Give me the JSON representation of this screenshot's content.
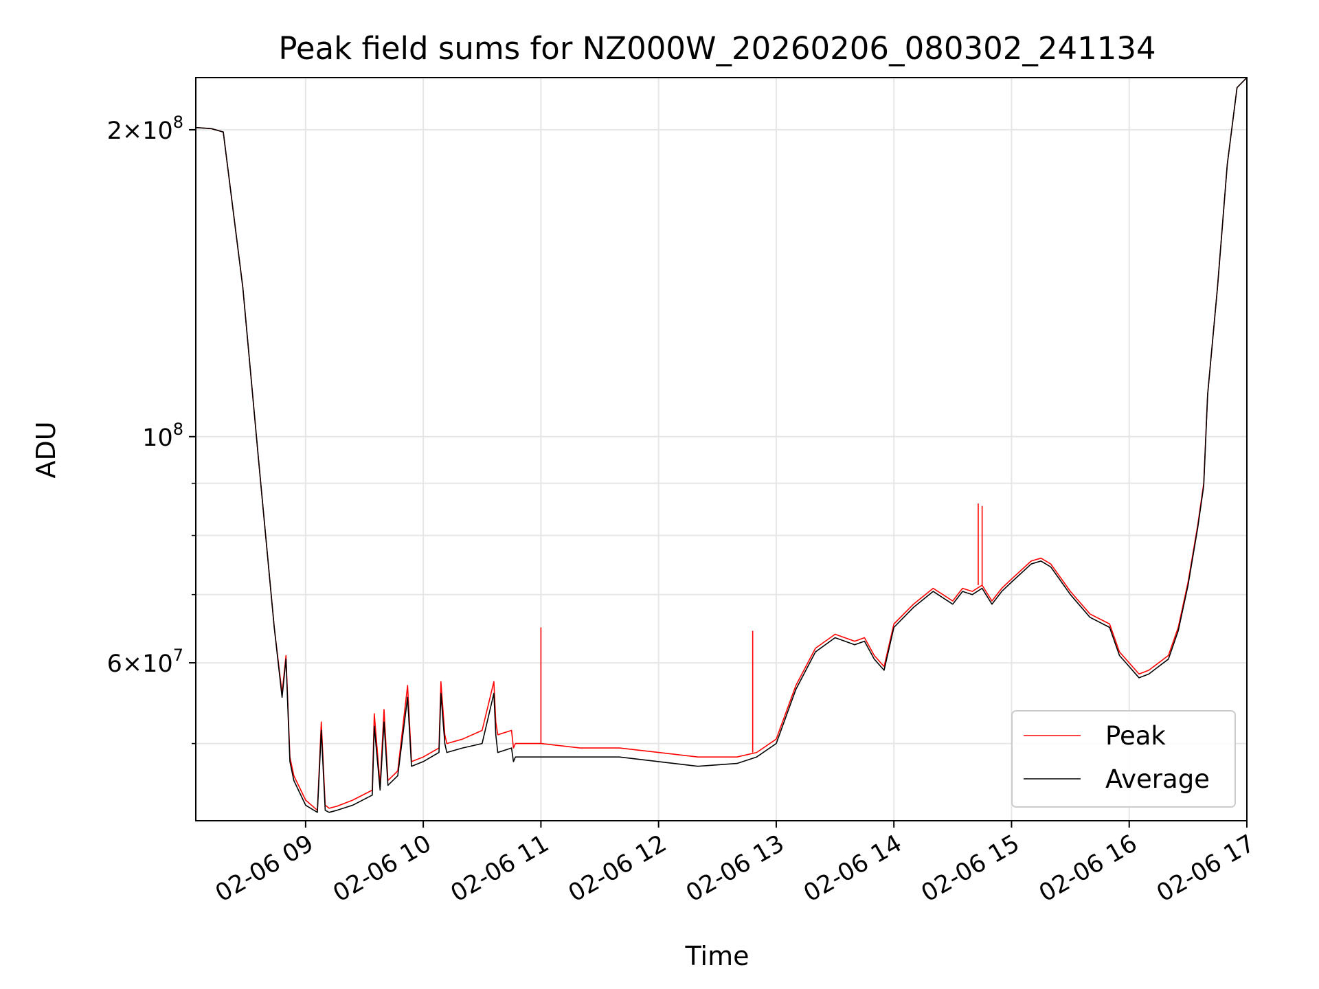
{
  "chart_data": {
    "type": "line",
    "title": "Peak field sums for NZ000W_20260206_080302_241134",
    "xlabel": "Time",
    "ylabel": "ADU",
    "y_scale": "log",
    "ylim": [
      42000000,
      225000000
    ],
    "xlim": [
      "2026-02-06 08:04",
      "2026-02-06 17:00"
    ],
    "grid": true,
    "legend_position": "lower right",
    "x_ticks": [
      {
        "t": "2026-02-06 09:00",
        "label": "02-06 09"
      },
      {
        "t": "2026-02-06 10:00",
        "label": "02-06 10"
      },
      {
        "t": "2026-02-06 11:00",
        "label": "02-06 11"
      },
      {
        "t": "2026-02-06 12:00",
        "label": "02-06 12"
      },
      {
        "t": "2026-02-06 13:00",
        "label": "02-06 13"
      },
      {
        "t": "2026-02-06 14:00",
        "label": "02-06 14"
      },
      {
        "t": "2026-02-06 15:00",
        "label": "02-06 15"
      },
      {
        "t": "2026-02-06 16:00",
        "label": "02-06 16"
      },
      {
        "t": "2026-02-06 17:00",
        "label": "02-06 17"
      }
    ],
    "y_ticks_major": [
      {
        "value": 200000000,
        "label": "2×10^8"
      },
      {
        "value": 100000000,
        "label": "10^8"
      },
      {
        "value": 60000000,
        "label": "6×10^7"
      }
    ],
    "y_ticks_minor": [
      50000000,
      70000000,
      80000000,
      90000000
    ],
    "colors": {
      "peak": "#ff0000",
      "average": "#000000"
    },
    "series": [
      {
        "name": "Peak",
        "x": [
          "2026-02-06 08:04",
          "2026-02-06 08:12",
          "2026-02-06 08:18",
          "2026-02-06 08:28",
          "2026-02-06 08:36",
          "2026-02-06 08:44",
          "2026-02-06 08:48",
          "2026-02-06 08:50",
          "2026-02-06 08:52",
          "2026-02-06 08:54",
          "2026-02-06 09:00",
          "2026-02-06 09:06",
          "2026-02-06 09:08",
          "2026-02-06 09:10",
          "2026-02-06 09:12",
          "2026-02-06 09:16",
          "2026-02-06 09:24",
          "2026-02-06 09:34",
          "2026-02-06 09:35",
          "2026-02-06 09:38",
          "2026-02-06 09:40",
          "2026-02-06 09:42",
          "2026-02-06 09:47",
          "2026-02-06 09:52",
          "2026-02-06 09:54",
          "2026-02-06 10:00",
          "2026-02-06 10:08",
          "2026-02-06 10:09",
          "2026-02-06 10:11",
          "2026-02-06 10:12",
          "2026-02-06 10:20",
          "2026-02-06 10:30",
          "2026-02-06 10:36",
          "2026-02-06 10:37",
          "2026-02-06 10:38",
          "2026-02-06 10:45",
          "2026-02-06 10:46",
          "2026-02-06 10:47",
          "2026-02-06 11:00",
          "2026-02-06 11:20",
          "2026-02-06 11:40",
          "2026-02-06 12:00",
          "2026-02-06 12:20",
          "2026-02-06 12:40",
          "2026-02-06 12:50",
          "2026-02-06 13:00",
          "2026-02-06 13:10",
          "2026-02-06 13:20",
          "2026-02-06 13:30",
          "2026-02-06 13:40",
          "2026-02-06 13:45",
          "2026-02-06 13:50",
          "2026-02-06 13:55",
          "2026-02-06 14:00",
          "2026-02-06 14:10",
          "2026-02-06 14:20",
          "2026-02-06 14:30",
          "2026-02-06 14:35",
          "2026-02-06 14:40",
          "2026-02-06 14:45",
          "2026-02-06 14:50",
          "2026-02-06 14:55",
          "2026-02-06 15:00",
          "2026-02-06 15:10",
          "2026-02-06 15:15",
          "2026-02-06 15:20",
          "2026-02-06 15:30",
          "2026-02-06 15:40",
          "2026-02-06 15:50",
          "2026-02-06 15:55",
          "2026-02-06 16:00",
          "2026-02-06 16:05",
          "2026-02-06 16:10",
          "2026-02-06 16:15",
          "2026-02-06 16:20",
          "2026-02-06 16:25",
          "2026-02-06 16:30",
          "2026-02-06 16:35",
          "2026-02-06 16:38",
          "2026-02-06 16:40",
          "2026-02-06 16:45",
          "2026-02-06 16:50",
          "2026-02-06 16:55",
          "2026-02-06 17:00"
        ],
        "y": [
          201000000,
          200500000,
          199000000,
          140000000,
          95000000,
          65000000,
          56000000,
          61000000,
          48500000,
          46500000,
          44000000,
          43000000,
          52500000,
          43500000,
          43200000,
          43400000,
          44000000,
          45000000,
          53500000,
          45500000,
          54000000,
          46000000,
          47000000,
          57000000,
          48000000,
          48500000,
          49500000,
          57500000,
          51000000,
          50000000,
          50500000,
          51500000,
          57500000,
          52500000,
          51000000,
          51500000,
          49500000,
          50000000,
          50000000,
          49500000,
          49500000,
          49000000,
          48500000,
          48500000,
          49000000,
          50500000,
          57000000,
          62000000,
          64000000,
          63000000,
          63500000,
          61000000,
          59500000,
          65500000,
          68500000,
          71000000,
          69000000,
          71000000,
          70500000,
          71500000,
          69000000,
          71000000,
          72500000,
          75500000,
          76000000,
          75000000,
          70500000,
          67000000,
          65500000,
          61500000,
          60000000,
          58500000,
          59000000,
          60000000,
          61000000,
          65000000,
          72000000,
          82000000,
          90000000,
          110000000,
          140000000,
          185000000,
          220000000,
          225000000
        ]
      },
      {
        "name": "Average",
        "x": [
          "2026-02-06 08:04",
          "2026-02-06 08:12",
          "2026-02-06 08:18",
          "2026-02-06 08:28",
          "2026-02-06 08:36",
          "2026-02-06 08:44",
          "2026-02-06 08:48",
          "2026-02-06 08:50",
          "2026-02-06 08:52",
          "2026-02-06 08:54",
          "2026-02-06 09:00",
          "2026-02-06 09:06",
          "2026-02-06 09:08",
          "2026-02-06 09:10",
          "2026-02-06 09:12",
          "2026-02-06 09:16",
          "2026-02-06 09:24",
          "2026-02-06 09:34",
          "2026-02-06 09:35",
          "2026-02-06 09:38",
          "2026-02-06 09:40",
          "2026-02-06 09:42",
          "2026-02-06 09:47",
          "2026-02-06 09:52",
          "2026-02-06 09:54",
          "2026-02-06 10:00",
          "2026-02-06 10:08",
          "2026-02-06 10:09",
          "2026-02-06 10:11",
          "2026-02-06 10:12",
          "2026-02-06 10:20",
          "2026-02-06 10:30",
          "2026-02-06 10:36",
          "2026-02-06 10:37",
          "2026-02-06 10:38",
          "2026-02-06 10:45",
          "2026-02-06 10:46",
          "2026-02-06 10:47",
          "2026-02-06 11:00",
          "2026-02-06 11:20",
          "2026-02-06 11:40",
          "2026-02-06 12:00",
          "2026-02-06 12:20",
          "2026-02-06 12:40",
          "2026-02-06 12:50",
          "2026-02-06 13:00",
          "2026-02-06 13:10",
          "2026-02-06 13:20",
          "2026-02-06 13:30",
          "2026-02-06 13:40",
          "2026-02-06 13:45",
          "2026-02-06 13:50",
          "2026-02-06 13:55",
          "2026-02-06 14:00",
          "2026-02-06 14:10",
          "2026-02-06 14:20",
          "2026-02-06 14:30",
          "2026-02-06 14:35",
          "2026-02-06 14:40",
          "2026-02-06 14:45",
          "2026-02-06 14:50",
          "2026-02-06 14:55",
          "2026-02-06 15:00",
          "2026-02-06 15:10",
          "2026-02-06 15:15",
          "2026-02-06 15:20",
          "2026-02-06 15:30",
          "2026-02-06 15:40",
          "2026-02-06 15:50",
          "2026-02-06 15:55",
          "2026-02-06 16:00",
          "2026-02-06 16:05",
          "2026-02-06 16:10",
          "2026-02-06 16:15",
          "2026-02-06 16:20",
          "2026-02-06 16:25",
          "2026-02-06 16:30",
          "2026-02-06 16:35",
          "2026-02-06 16:38",
          "2026-02-06 16:40",
          "2026-02-06 16:45",
          "2026-02-06 16:50",
          "2026-02-06 16:55",
          "2026-02-06 17:00"
        ],
        "y": [
          201000000,
          200500000,
          199000000,
          140000000,
          95000000,
          65000000,
          55500000,
          60500000,
          48000000,
          46000000,
          43500000,
          42800000,
          51500000,
          43000000,
          42800000,
          43000000,
          43500000,
          44500000,
          52000000,
          45000000,
          52500000,
          45500000,
          46500000,
          55500000,
          47500000,
          48000000,
          49000000,
          56000000,
          50000000,
          49000000,
          49500000,
          50000000,
          56000000,
          51000000,
          49000000,
          49500000,
          48000000,
          48500000,
          48500000,
          48500000,
          48500000,
          48000000,
          47500000,
          47800000,
          48500000,
          50000000,
          56500000,
          61500000,
          63500000,
          62500000,
          63000000,
          60500000,
          59000000,
          65000000,
          68000000,
          70500000,
          68500000,
          70500000,
          70000000,
          71000000,
          68500000,
          70500000,
          72000000,
          75000000,
          75500000,
          74500000,
          70000000,
          66500000,
          65000000,
          61000000,
          59500000,
          58000000,
          58500000,
          59500000,
          60500000,
          64500000,
          71500000,
          81500000,
          89500000,
          110000000,
          140000000,
          185000000,
          220000000,
          225000000
        ]
      }
    ],
    "spikes": [
      {
        "series": "Peak",
        "t": "2026-02-06 11:00",
        "y": 65000000
      },
      {
        "series": "Peak",
        "t": "2026-02-06 12:48",
        "y": 64500000
      },
      {
        "series": "Peak",
        "t": "2026-02-06 14:43",
        "y": 86000000
      },
      {
        "series": "Peak",
        "t": "2026-02-06 14:45",
        "y": 85500000
      }
    ],
    "legend": [
      {
        "label": "Peak",
        "color": "#ff0000"
      },
      {
        "label": "Average",
        "color": "#000000"
      }
    ]
  }
}
